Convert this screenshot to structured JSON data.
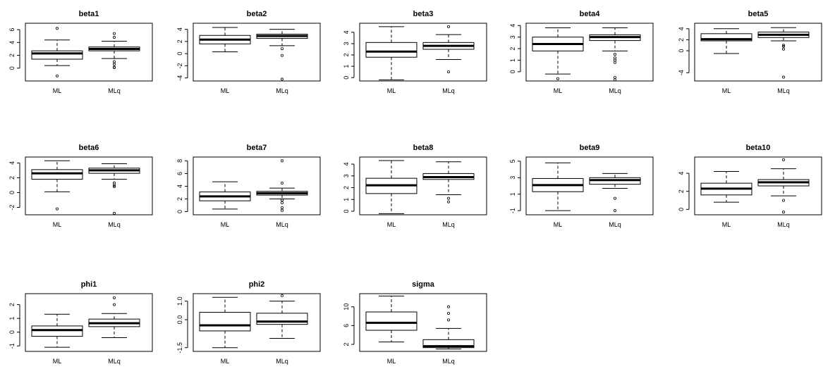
{
  "chart_data": [
    {
      "type": "box",
      "title": "beta1",
      "categories": [
        "ML",
        "MLq"
      ],
      "ylim": [
        -2,
        7
      ],
      "yticks": [
        0,
        2,
        4,
        6
      ],
      "boxes": [
        {
          "name": "ML",
          "min": 0.4,
          "q1": 1.4,
          "median": 2.3,
          "q3": 2.7,
          "max": 4.4,
          "outliers": [
            -1.2,
            6.2
          ]
        },
        {
          "name": "MLq",
          "min": 1.5,
          "q1": 2.7,
          "median": 3.0,
          "q3": 3.3,
          "max": 4.2,
          "outliers": [
            0.1,
            0.15,
            0.6,
            1.0,
            4.8,
            5.4
          ]
        }
      ]
    },
    {
      "type": "box",
      "title": "beta2",
      "categories": [
        "ML",
        "MLq"
      ],
      "ylim": [
        -4.5,
        5
      ],
      "yticks": [
        -4,
        -2,
        0,
        2,
        4
      ],
      "boxes": [
        {
          "name": "ML",
          "min": 0.3,
          "q1": 1.6,
          "median": 2.3,
          "q3": 3.0,
          "max": 4.3,
          "outliers": []
        },
        {
          "name": "MLq",
          "min": 1.3,
          "q1": 2.5,
          "median": 2.9,
          "q3": 3.2,
          "max": 4.0,
          "outliers": [
            -4.2,
            -0.3,
            0.8
          ]
        }
      ]
    },
    {
      "type": "box",
      "title": "beta3",
      "categories": [
        "ML",
        "MLq"
      ],
      "ylim": [
        -0.3,
        4.8
      ],
      "yticks": [
        0,
        1,
        2,
        3,
        4
      ],
      "boxes": [
        {
          "name": "ML",
          "min": -0.2,
          "q1": 1.8,
          "median": 2.3,
          "q3": 3.1,
          "max": 4.5,
          "outliers": []
        },
        {
          "name": "MLq",
          "min": 1.6,
          "q1": 2.5,
          "median": 2.8,
          "q3": 3.1,
          "max": 3.8,
          "outliers": [
            0.5,
            4.5
          ]
        }
      ]
    },
    {
      "type": "box",
      "title": "beta4",
      "categories": [
        "ML",
        "MLq"
      ],
      "ylim": [
        -0.8,
        4.2
      ],
      "yticks": [
        0,
        1,
        2,
        3,
        4
      ],
      "boxes": [
        {
          "name": "ML",
          "min": -0.2,
          "q1": 1.8,
          "median": 2.4,
          "q3": 3.0,
          "max": 3.8,
          "outliers": [
            -0.6
          ]
        },
        {
          "name": "MLq",
          "min": 1.8,
          "q1": 2.7,
          "median": 3.0,
          "q3": 3.2,
          "max": 3.8,
          "outliers": [
            -0.7,
            -0.5,
            0.8,
            1.0,
            1.2,
            1.5
          ]
        }
      ]
    },
    {
      "type": "box",
      "title": "beta5",
      "categories": [
        "ML",
        "MLq"
      ],
      "ylim": [
        -5.5,
        5
      ],
      "yticks": [
        -4,
        0,
        2,
        4
      ],
      "boxes": [
        {
          "name": "ML",
          "min": -0.5,
          "q1": 1.8,
          "median": 2.1,
          "q3": 3.1,
          "max": 4.0,
          "outliers": []
        },
        {
          "name": "MLq",
          "min": 1.8,
          "q1": 2.4,
          "median": 2.9,
          "q3": 3.4,
          "max": 4.2,
          "outliers": [
            -4.8,
            0.3,
            0.8,
            1.0
          ]
        }
      ]
    },
    {
      "type": "box",
      "title": "beta6",
      "categories": [
        "ML",
        "MLq"
      ],
      "ylim": [
        -3,
        4.8
      ],
      "yticks": [
        -2,
        0,
        2,
        4
      ],
      "boxes": [
        {
          "name": "ML",
          "min": 0.1,
          "q1": 1.8,
          "median": 2.6,
          "q3": 3.1,
          "max": 4.3,
          "outliers": [
            -2.2
          ]
        },
        {
          "name": "MLq",
          "min": 1.8,
          "q1": 2.6,
          "median": 3.0,
          "q3": 3.3,
          "max": 3.9,
          "outliers": [
            -2.8,
            0.8,
            1.0,
            1.3
          ]
        }
      ]
    },
    {
      "type": "box",
      "title": "beta7",
      "categories": [
        "ML",
        "MLq"
      ],
      "ylim": [
        -0.5,
        8.6
      ],
      "yticks": [
        0,
        2,
        4,
        6,
        8
      ],
      "boxes": [
        {
          "name": "ML",
          "min": 0.4,
          "q1": 1.7,
          "median": 2.4,
          "q3": 3.1,
          "max": 4.7,
          "outliers": []
        },
        {
          "name": "MLq",
          "min": 2.0,
          "q1": 2.6,
          "median": 2.9,
          "q3": 3.2,
          "max": 3.7,
          "outliers": [
            0.2,
            0.6,
            1.4,
            1.8,
            4.5,
            8.0
          ]
        }
      ]
    },
    {
      "type": "box",
      "title": "beta8",
      "categories": [
        "ML",
        "MLq"
      ],
      "ylim": [
        -0.3,
        4.6
      ],
      "yticks": [
        0,
        1,
        2,
        3,
        4
      ],
      "boxes": [
        {
          "name": "ML",
          "min": -0.2,
          "q1": 1.5,
          "median": 2.2,
          "q3": 2.8,
          "max": 4.3,
          "outliers": []
        },
        {
          "name": "MLq",
          "min": 1.4,
          "q1": 2.7,
          "median": 2.9,
          "q3": 3.2,
          "max": 4.2,
          "outliers": [
            0.8,
            1.1
          ]
        }
      ]
    },
    {
      "type": "box",
      "title": "beta9",
      "categories": [
        "ML",
        "MLq"
      ],
      "ylim": [
        -1.5,
        5.5
      ],
      "yticks": [
        -1,
        1,
        3,
        5
      ],
      "boxes": [
        {
          "name": "ML",
          "min": -1.0,
          "q1": 1.3,
          "median": 2.1,
          "q3": 2.9,
          "max": 4.8,
          "outliers": []
        },
        {
          "name": "MLq",
          "min": 1.7,
          "q1": 2.2,
          "median": 2.7,
          "q3": 3.0,
          "max": 3.5,
          "outliers": [
            -1.0,
            0.5
          ]
        }
      ]
    },
    {
      "type": "box",
      "title": "beta10",
      "categories": [
        "ML",
        "MLq"
      ],
      "ylim": [
        -0.6,
        5.8
      ],
      "yticks": [
        0,
        2,
        4
      ],
      "boxes": [
        {
          "name": "ML",
          "min": 0.8,
          "q1": 1.6,
          "median": 2.3,
          "q3": 2.9,
          "max": 4.2,
          "outliers": []
        },
        {
          "name": "MLq",
          "min": 1.5,
          "q1": 2.6,
          "median": 3.0,
          "q3": 3.3,
          "max": 4.5,
          "outliers": [
            -0.3,
            1.0,
            5.5
          ]
        }
      ]
    },
    {
      "type": "box",
      "title": "phi1",
      "categories": [
        "ML",
        "MLq"
      ],
      "ylim": [
        -1.4,
        2.8
      ],
      "yticks": [
        -1,
        0,
        1,
        2
      ],
      "boxes": [
        {
          "name": "ML",
          "min": -1.1,
          "q1": -0.3,
          "median": 0.15,
          "q3": 0.45,
          "max": 1.3,
          "outliers": []
        },
        {
          "name": "MLq",
          "min": -0.4,
          "q1": 0.4,
          "median": 0.65,
          "q3": 0.95,
          "max": 1.35,
          "outliers": [
            2.0,
            2.5
          ]
        }
      ]
    },
    {
      "type": "box",
      "title": "phi2",
      "categories": [
        "ML",
        "MLq"
      ],
      "ylim": [
        -1.7,
        1.4
      ],
      "yticks": [
        -1.5,
        0.0,
        1.0
      ],
      "boxes": [
        {
          "name": "ML",
          "min": -1.5,
          "q1": -0.6,
          "median": -0.3,
          "q3": 0.4,
          "max": 1.2,
          "outliers": []
        },
        {
          "name": "MLq",
          "min": -1.0,
          "q1": -0.25,
          "median": -0.1,
          "q3": 0.35,
          "max": 1.0,
          "outliers": [
            1.3
          ]
        }
      ]
    },
    {
      "type": "box",
      "title": "sigma",
      "categories": [
        "ML",
        "MLq"
      ],
      "ylim": [
        0.5,
        12.8
      ],
      "yticks": [
        2,
        6,
        10
      ],
      "boxes": [
        {
          "name": "ML",
          "min": 2.5,
          "q1": 5.0,
          "median": 6.6,
          "q3": 8.9,
          "max": 12.3,
          "outliers": []
        },
        {
          "name": "MLq",
          "min": 1.0,
          "q1": 1.3,
          "median": 1.6,
          "q3": 3.0,
          "max": 5.4,
          "outliers": [
            7.2,
            8.6,
            10.0
          ]
        }
      ]
    }
  ]
}
